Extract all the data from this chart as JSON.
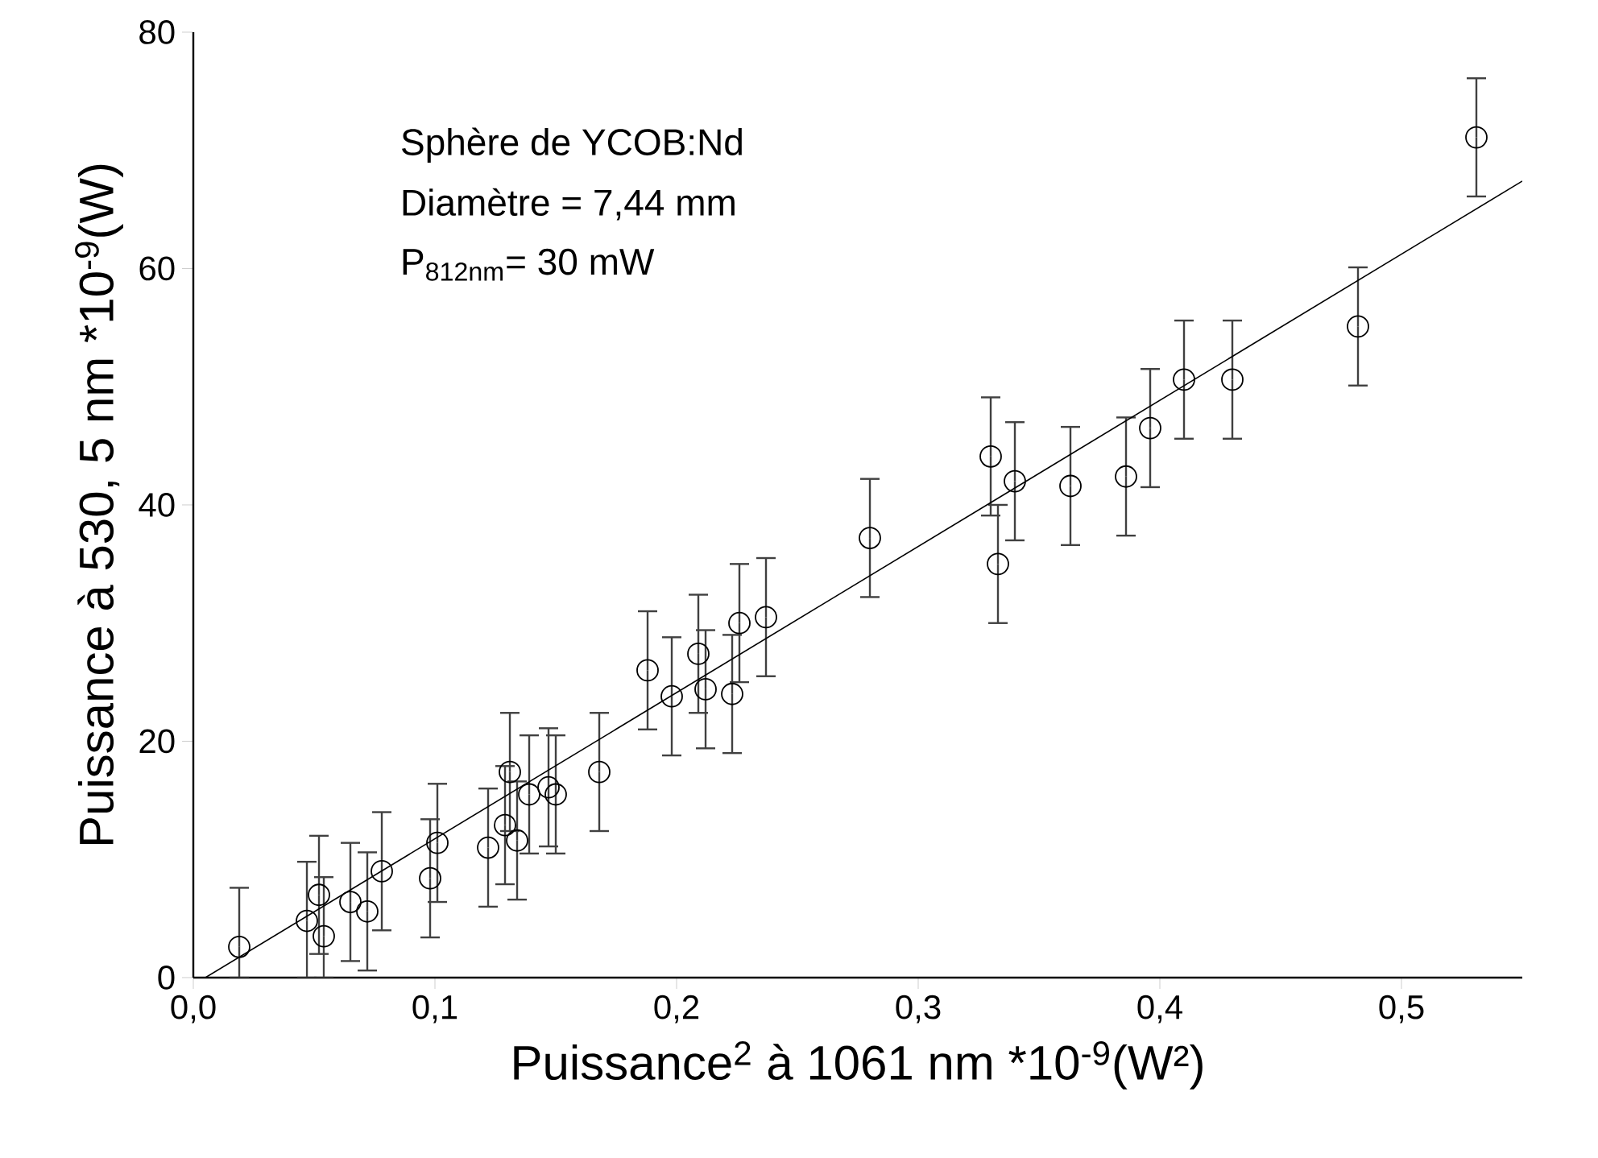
{
  "chart_data": {
    "type": "scatter",
    "xlabel": "Puissance$^{2}$ à 1061 nm *10$^{-9}$(W²)",
    "ylabel": "Puissance à 530, 5 nm *10$^{-9}$(W)",
    "annotations": [
      "Sphère de YCOB:Nd",
      "Diamètre = 7,44 mm",
      "P$_{812nm}$= 30 mW"
    ],
    "xlim": [
      0,
      0.55
    ],
    "ylim": [
      0,
      80
    ],
    "xticks": [
      {
        "value": 0,
        "label": "0,0"
      },
      {
        "value": 0.1,
        "label": "0,1"
      },
      {
        "value": 0.2,
        "label": "0,2"
      },
      {
        "value": 0.3,
        "label": "0,3"
      },
      {
        "value": 0.4,
        "label": "0,4"
      },
      {
        "value": 0.5,
        "label": "0,5"
      }
    ],
    "yticks": [
      0,
      20,
      40,
      60,
      80
    ],
    "grid": false,
    "marker": "circle",
    "series": [
      {
        "color": "#000000",
        "x": [
          0.019,
          0.047,
          0.052,
          0.054,
          0.065,
          0.072,
          0.078,
          0.098,
          0.101,
          0.122,
          0.129,
          0.131,
          0.134,
          0.139,
          0.147,
          0.15,
          0.168,
          0.188,
          0.198,
          0.209,
          0.212,
          0.223,
          0.226,
          0.237,
          0.28,
          0.33,
          0.333,
          0.34,
          0.363,
          0.386,
          0.396,
          0.41,
          0.43,
          0.482,
          0.531
        ],
        "values": [
          2.6,
          4.8,
          7.0,
          3.5,
          6.4,
          5.6,
          9.0,
          8.4,
          11.4,
          11.0,
          12.9,
          17.4,
          11.6,
          15.5,
          16.1,
          15.5,
          17.4,
          26.0,
          23.8,
          27.4,
          24.4,
          24.0,
          30.0,
          30.5,
          37.2,
          44.1,
          35.0,
          42.0,
          41.6,
          42.4,
          46.5,
          50.6,
          50.6,
          55.1,
          71.1
        ],
        "errors": [
          [
            0,
            7.6
          ],
          [
            0,
            9.8
          ],
          5,
          [
            0,
            8.5
          ],
          5,
          5,
          5,
          5,
          5,
          5,
          5,
          5,
          5,
          5,
          5,
          5,
          5,
          5,
          5,
          5,
          5,
          5,
          5,
          5,
          5,
          5,
          5,
          5,
          5,
          5,
          5,
          5,
          5,
          5,
          5
        ]
      },
      {
        "type": "line",
        "color": "#000000",
        "marker": "none",
        "x": [
          0.005,
          0.55
        ],
        "values": [
          0,
          67.4
        ]
      }
    ]
  }
}
